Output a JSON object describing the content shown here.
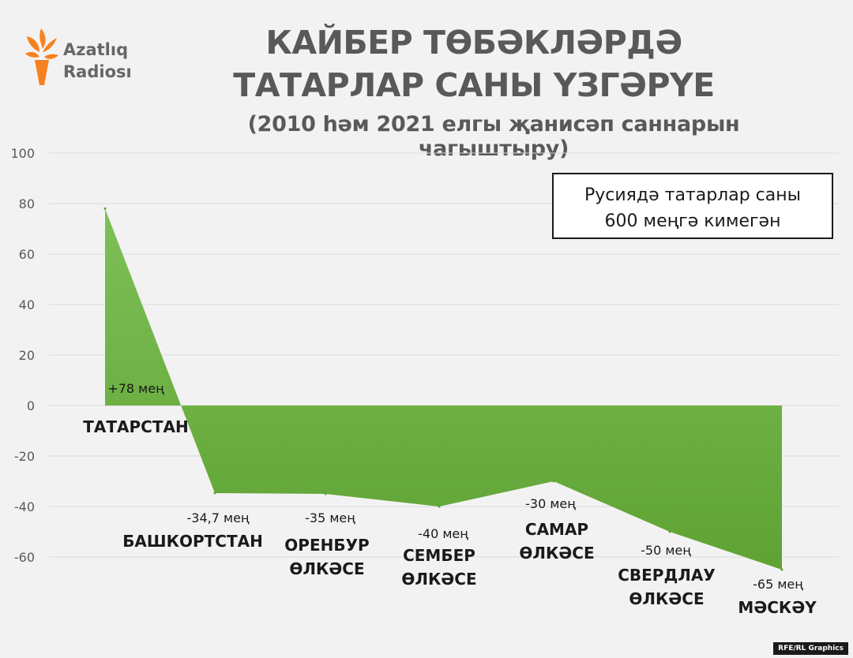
{
  "header": {
    "brand_line1": "Azatlıq",
    "brand_line2": "Radiosı",
    "title_line1": "КАЙБЕР ТӨБӘКЛӘРДӘ",
    "title_line2": "ТАТАРЛАР САНЫ ҮЗГӘРҮЕ",
    "subtitle": "(2010 һәм 2021 елгы җанисәп саннарын чагыштыру)"
  },
  "note": {
    "line1": "Русиядә татарлар саны",
    "line2": "600 меңгә кимегән"
  },
  "credit": "RFE/RL Graphics",
  "colors": {
    "background": "#f2f2f2",
    "area_fill_top": "#7ec057",
    "area_fill_bottom": "#5fa233",
    "gridline": "#d9d9d9",
    "tick_text": "#595959",
    "logo_orange": "#f58220"
  },
  "chart_data": {
    "type": "area",
    "title": "КАЙБЕР ТӨБӘКЛӘРДӘ ТАТАРЛАР САНЫ ҮЗГӘРҮЕ",
    "subtitle": "(2010 һәм 2021 елгы җанисәп саннарын чагыштыру)",
    "xlabel": "",
    "ylabel": "",
    "ylim": [
      -70,
      100
    ],
    "yticks": [
      100,
      80,
      60,
      40,
      20,
      0,
      -20,
      -40,
      -60
    ],
    "grid": true,
    "categories": [
      [
        "ТАТАРСТАН"
      ],
      [
        "БАШКОРТСТАН"
      ],
      [
        "ОРЕНБУР",
        "ӨЛКӘСЕ"
      ],
      [
        "СЕМБЕР",
        "ӨЛКӘСЕ"
      ],
      [
        "САМАР",
        "ӨЛКӘСЕ"
      ],
      [
        "СВЕРДЛАУ",
        "ӨЛКӘСЕ"
      ],
      [
        "МӘСКӘҮ"
      ]
    ],
    "values": [
      78,
      -34.7,
      -35,
      -40,
      -30,
      -50,
      -65
    ],
    "data_labels": [
      "+78 мең",
      "-34,7 мең",
      "-35 мең",
      "-40 мең",
      "-30 мең",
      "-50 мең",
      "-65 мең"
    ]
  }
}
